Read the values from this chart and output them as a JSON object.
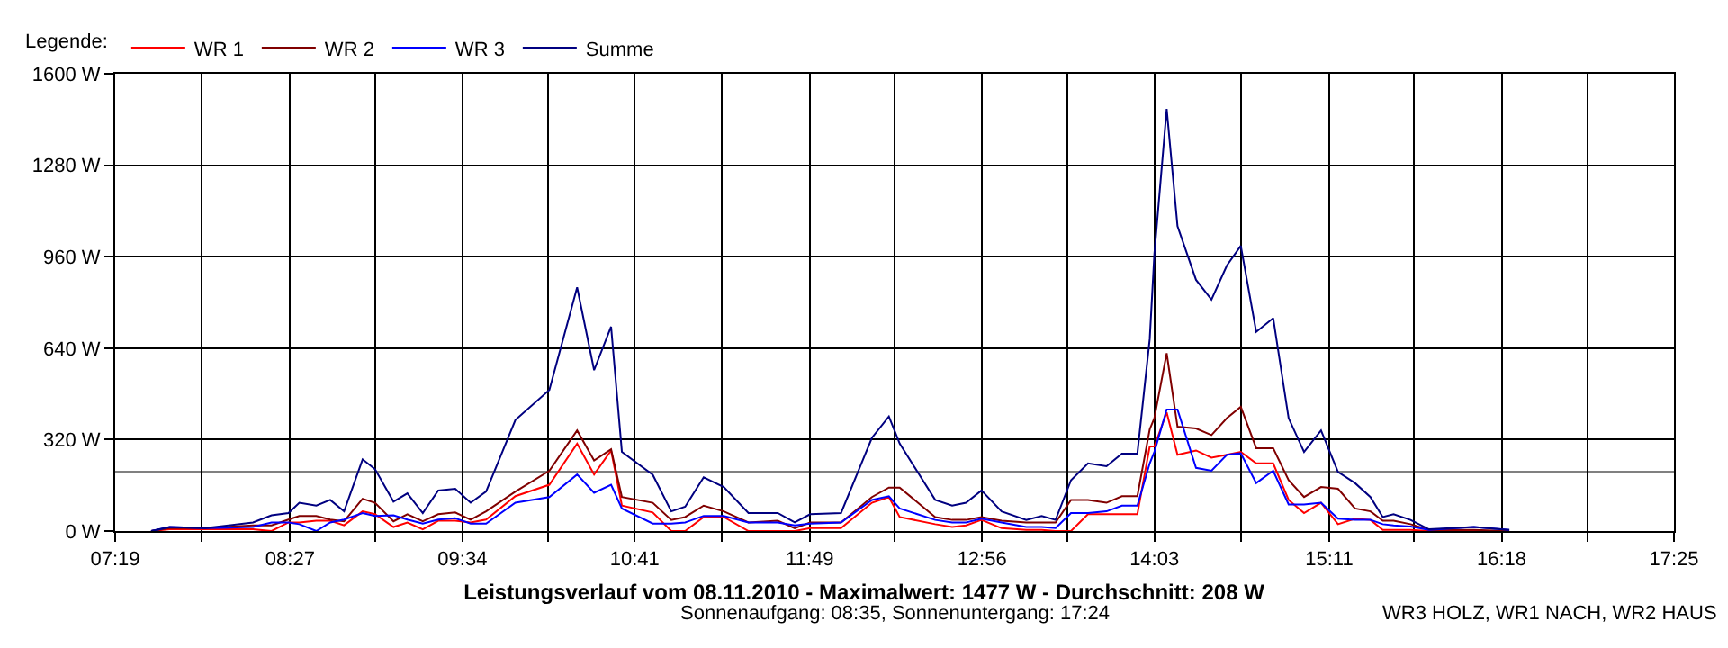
{
  "chart_data": {
    "type": "line",
    "title": "Leistungsverlauf vom 08.11.2010 - Maximalwert: 1477 W - Durchschnitt: 208 W",
    "subtitle": "Sonnenaufgang: 08:35, Sonnenuntergang: 17:24",
    "legend_title": "Legende:",
    "annotations": [
      "WR3 HOLZ, WR1 NACH, WR2 HAUS"
    ],
    "x": [
      7.55,
      7.67,
      7.9,
      8.21,
      8.33,
      8.44,
      8.51,
      8.62,
      8.71,
      8.8,
      8.92,
      9.0,
      9.12,
      9.21,
      9.31,
      9.41,
      9.52,
      9.62,
      9.72,
      9.91,
      10.13,
      10.31,
      10.42,
      10.53,
      10.6,
      10.8,
      10.92,
      11.01,
      11.13,
      11.26,
      11.42,
      11.61,
      11.72,
      11.82,
      12.02,
      12.22,
      12.33,
      12.4,
      12.63,
      12.74,
      12.83,
      12.93,
      13.06,
      13.22,
      13.32,
      13.41,
      13.51,
      13.62,
      13.74,
      13.84,
      13.94,
      14.02,
      14.05,
      14.13,
      14.2,
      14.32,
      14.42,
      14.52,
      14.61,
      14.71,
      14.82,
      14.92,
      15.02,
      15.13,
      15.24,
      15.35,
      15.45,
      15.53,
      15.6,
      15.71,
      15.83,
      16.12,
      16.35
    ],
    "series": [
      {
        "name": "WR 1",
        "color": "#ff0000",
        "values": [
          0,
          6,
          6,
          6,
          0,
          30,
          30,
          36,
          36,
          20,
          69,
          59,
          14,
          30,
          6,
          36,
          36,
          30,
          40,
          122,
          162,
          306,
          198,
          282,
          89,
          65,
          0,
          0,
          49,
          49,
          0,
          0,
          0,
          10,
          10,
          99,
          119,
          49,
          24,
          14,
          20,
          39,
          10,
          4,
          4,
          0,
          0,
          59,
          59,
          59,
          59,
          296,
          296,
          415,
          267,
          282,
          257,
          267,
          277,
          237,
          237,
          109,
          63,
          99,
          24,
          43,
          39,
          4,
          4,
          4,
          0,
          0,
          0
        ]
      },
      {
        "name": "WR 2",
        "color": "#800000",
        "values": [
          0,
          10,
          10,
          20,
          20,
          40,
          53,
          53,
          40,
          34,
          113,
          99,
          34,
          59,
          34,
          59,
          65,
          40,
          69,
          138,
          211,
          352,
          247,
          286,
          119,
          99,
          39,
          49,
          89,
          69,
          30,
          36,
          10,
          30,
          30,
          119,
          152,
          152,
          49,
          39,
          39,
          49,
          36,
          30,
          30,
          30,
          109,
          109,
          99,
          122,
          122,
          356,
          395,
          622,
          365,
          359,
          336,
          395,
          435,
          290,
          290,
          178,
          119,
          154,
          148,
          79,
          69,
          36,
          36,
          24,
          4,
          4,
          0
        ]
      },
      {
        "name": "WR 3",
        "color": "#0000ff",
        "values": [
          0,
          14,
          10,
          14,
          30,
          30,
          24,
          0,
          30,
          40,
          63,
          53,
          55,
          40,
          26,
          40,
          45,
          26,
          26,
          99,
          119,
          198,
          134,
          162,
          79,
          26,
          26,
          30,
          53,
          53,
          30,
          30,
          20,
          26,
          30,
          109,
          122,
          79,
          39,
          30,
          30,
          43,
          30,
          14,
          14,
          10,
          63,
          63,
          69,
          89,
          89,
          237,
          277,
          425,
          425,
          221,
          211,
          267,
          272,
          168,
          211,
          93,
          93,
          99,
          43,
          39,
          39,
          24,
          20,
          16,
          4,
          14,
          4
        ]
      },
      {
        "name": "Summe",
        "color": "#000080",
        "values": [
          0,
          14,
          10,
          30,
          55,
          63,
          99,
          89,
          109,
          69,
          251,
          217,
          103,
          132,
          63,
          142,
          148,
          99,
          138,
          389,
          494,
          853,
          563,
          715,
          277,
          197,
          69,
          85,
          188,
          154,
          63,
          63,
          30,
          59,
          63,
          326,
          401,
          306,
          109,
          89,
          99,
          142,
          69,
          39,
          53,
          39,
          178,
          237,
          227,
          271,
          271,
          672,
          968,
          1477,
          1067,
          879,
          810,
          929,
          998,
          697,
          745,
          395,
          277,
          352,
          207,
          168,
          119,
          49,
          59,
          39,
          6,
          14,
          4
        ]
      }
    ],
    "xlim": [
      7.3167,
      17.4167
    ],
    "xticks": [
      {
        "value": 7.3167,
        "label": "07:19"
      },
      {
        "value": 7.8778,
        "label": null
      },
      {
        "value": 8.45,
        "label": "08:27"
      },
      {
        "value": 9.0,
        "label": null
      },
      {
        "value": 9.5667,
        "label": "09:34"
      },
      {
        "value": 10.1222,
        "label": null
      },
      {
        "value": 10.6833,
        "label": "10:41"
      },
      {
        "value": 11.2444,
        "label": null
      },
      {
        "value": 11.8167,
        "label": "11:49"
      },
      {
        "value": 12.3667,
        "label": null
      },
      {
        "value": 12.9333,
        "label": "12:56"
      },
      {
        "value": 13.4889,
        "label": null
      },
      {
        "value": 14.05,
        "label": "14:03"
      },
      {
        "value": 14.6111,
        "label": null
      },
      {
        "value": 15.1833,
        "label": "15:11"
      },
      {
        "value": 15.7333,
        "label": null
      },
      {
        "value": 16.3,
        "label": "16:18"
      },
      {
        "value": 16.8556,
        "label": null
      },
      {
        "value": 17.4167,
        "label": "17:25"
      }
    ],
    "ylim": [
      0,
      1600
    ],
    "yticks": [
      {
        "value": 0,
        "label": "0 W"
      },
      {
        "value": 320,
        "label": "320 W"
      },
      {
        "value": 640,
        "label": "640 W"
      },
      {
        "value": 960,
        "label": "960 W"
      },
      {
        "value": 1280,
        "label": "1280 W"
      },
      {
        "value": 1600,
        "label": "1600 W"
      }
    ],
    "ref_lines": [
      {
        "axis": "y",
        "value": 208,
        "color": "#808080"
      }
    ],
    "grid": true,
    "legend": "top left",
    "marker": "none",
    "line_style": "solid"
  }
}
